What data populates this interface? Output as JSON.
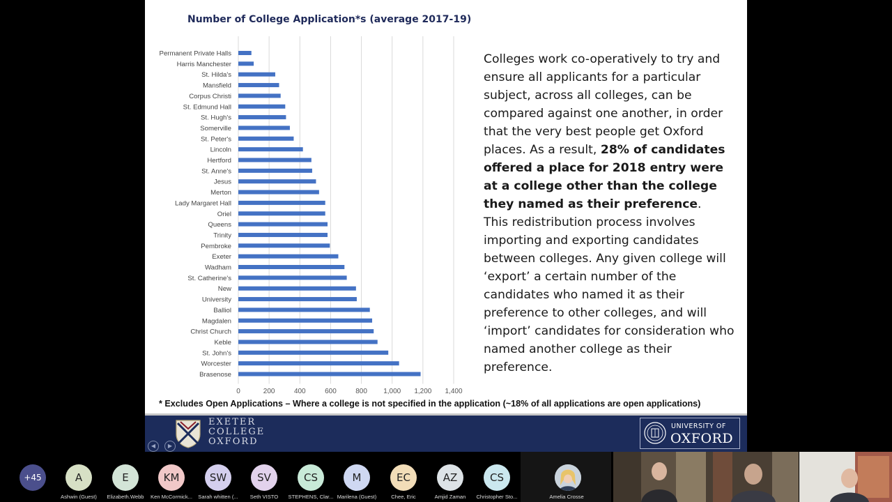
{
  "slide": {
    "chart_title": "Number of College Application*s (average 2017-19)",
    "footnote": "* Excludes Open Applications – Where a college is not specified in the application (~18% of all applications are open applications)",
    "body": {
      "p1_a": "Colleges work co-operatively to try and ensure all applicants for a particular subject, across all colleges, can be compared against one another, in order that the very best people get Oxford places. As a result, ",
      "p1_bold": "28% of candidates offered a place for 2018 entry were at a college other than the college they named as their preference",
      "p1_c": ".",
      "p2": "This redistribution process involves importing and exporting candidates between colleges. Any given college will ‘export’ a certain number of the candidates who named it as their preference to other colleges, and will ‘import’ candidates for consideration who named another college as their preference."
    },
    "footer": {
      "exeter_line1": "EXETER",
      "exeter_line2": "COLLEGE",
      "exeter_line3": "OXFORD",
      "oxford_small": "UNIVERSITY OF",
      "oxford_big": "OXFORD",
      "prev_icon": "prev-arrow-icon",
      "next_icon": "next-arrow-icon"
    }
  },
  "chart_data": {
    "type": "bar",
    "orientation": "horizontal",
    "title": "Number of College Application*s (average 2017-19)",
    "categories": [
      "Permanent Private Halls",
      "Harris Manchester",
      "St. Hilda's",
      "Mansfield",
      "Corpus Christi",
      "St. Edmund Hall",
      "St. Hugh's",
      "Somerville",
      "St. Peter's",
      "Lincoln",
      "Hertford",
      "St. Anne's",
      "Jesus",
      "Merton",
      "Lady Margaret Hall",
      "Oriel",
      "Queens",
      "Trinity",
      "Pembroke",
      "Exeter",
      "Wadham",
      "St. Catherine's",
      "New",
      "University",
      "Balliol",
      "Magdalen",
      "Christ Church",
      "Keble",
      "St. John's",
      "Worcester",
      "Brasenose"
    ],
    "values": [
      85,
      100,
      240,
      265,
      275,
      305,
      310,
      335,
      360,
      420,
      475,
      480,
      505,
      525,
      565,
      565,
      580,
      580,
      595,
      650,
      690,
      705,
      765,
      770,
      855,
      870,
      880,
      905,
      975,
      1045,
      1185
    ],
    "xlim": [
      0,
      1400
    ],
    "xticks": [
      "0",
      "200",
      "400",
      "600",
      "800",
      "1,000",
      "1,200",
      "1,400"
    ],
    "grid": true,
    "bar_color": "#4472c4"
  },
  "participants": {
    "count_label": "+45",
    "people": [
      {
        "initials": "A",
        "name": "Ashwin (Guest)",
        "color": "#d7e0c5"
      },
      {
        "initials": "E",
        "name": "Elizabeth.Webb",
        "color": "#d3e4d7"
      },
      {
        "initials": "KM",
        "name": "Ken McCormick...",
        "color": "#f1c8c8"
      },
      {
        "initials": "SW",
        "name": "Sarah whitten (...",
        "color": "#d4cfee"
      },
      {
        "initials": "SV",
        "name": "Seth VISTO",
        "color": "#e2d2ec"
      },
      {
        "initials": "CS",
        "name": "STEPHENS, Clar...",
        "color": "#c8ead8"
      },
      {
        "initials": "M",
        "name": "Marilena (Guest)",
        "color": "#cfd8f2"
      },
      {
        "initials": "EC",
        "name": "Chee, Eric",
        "color": "#f2ddb8"
      },
      {
        "initials": "AZ",
        "name": "Amjid Zaman",
        "color": "#dde3e7"
      },
      {
        "initials": "CS",
        "name": "Christopher Sto...",
        "color": "#cbe8ef"
      }
    ],
    "video_name": "Amelia Crosse"
  }
}
